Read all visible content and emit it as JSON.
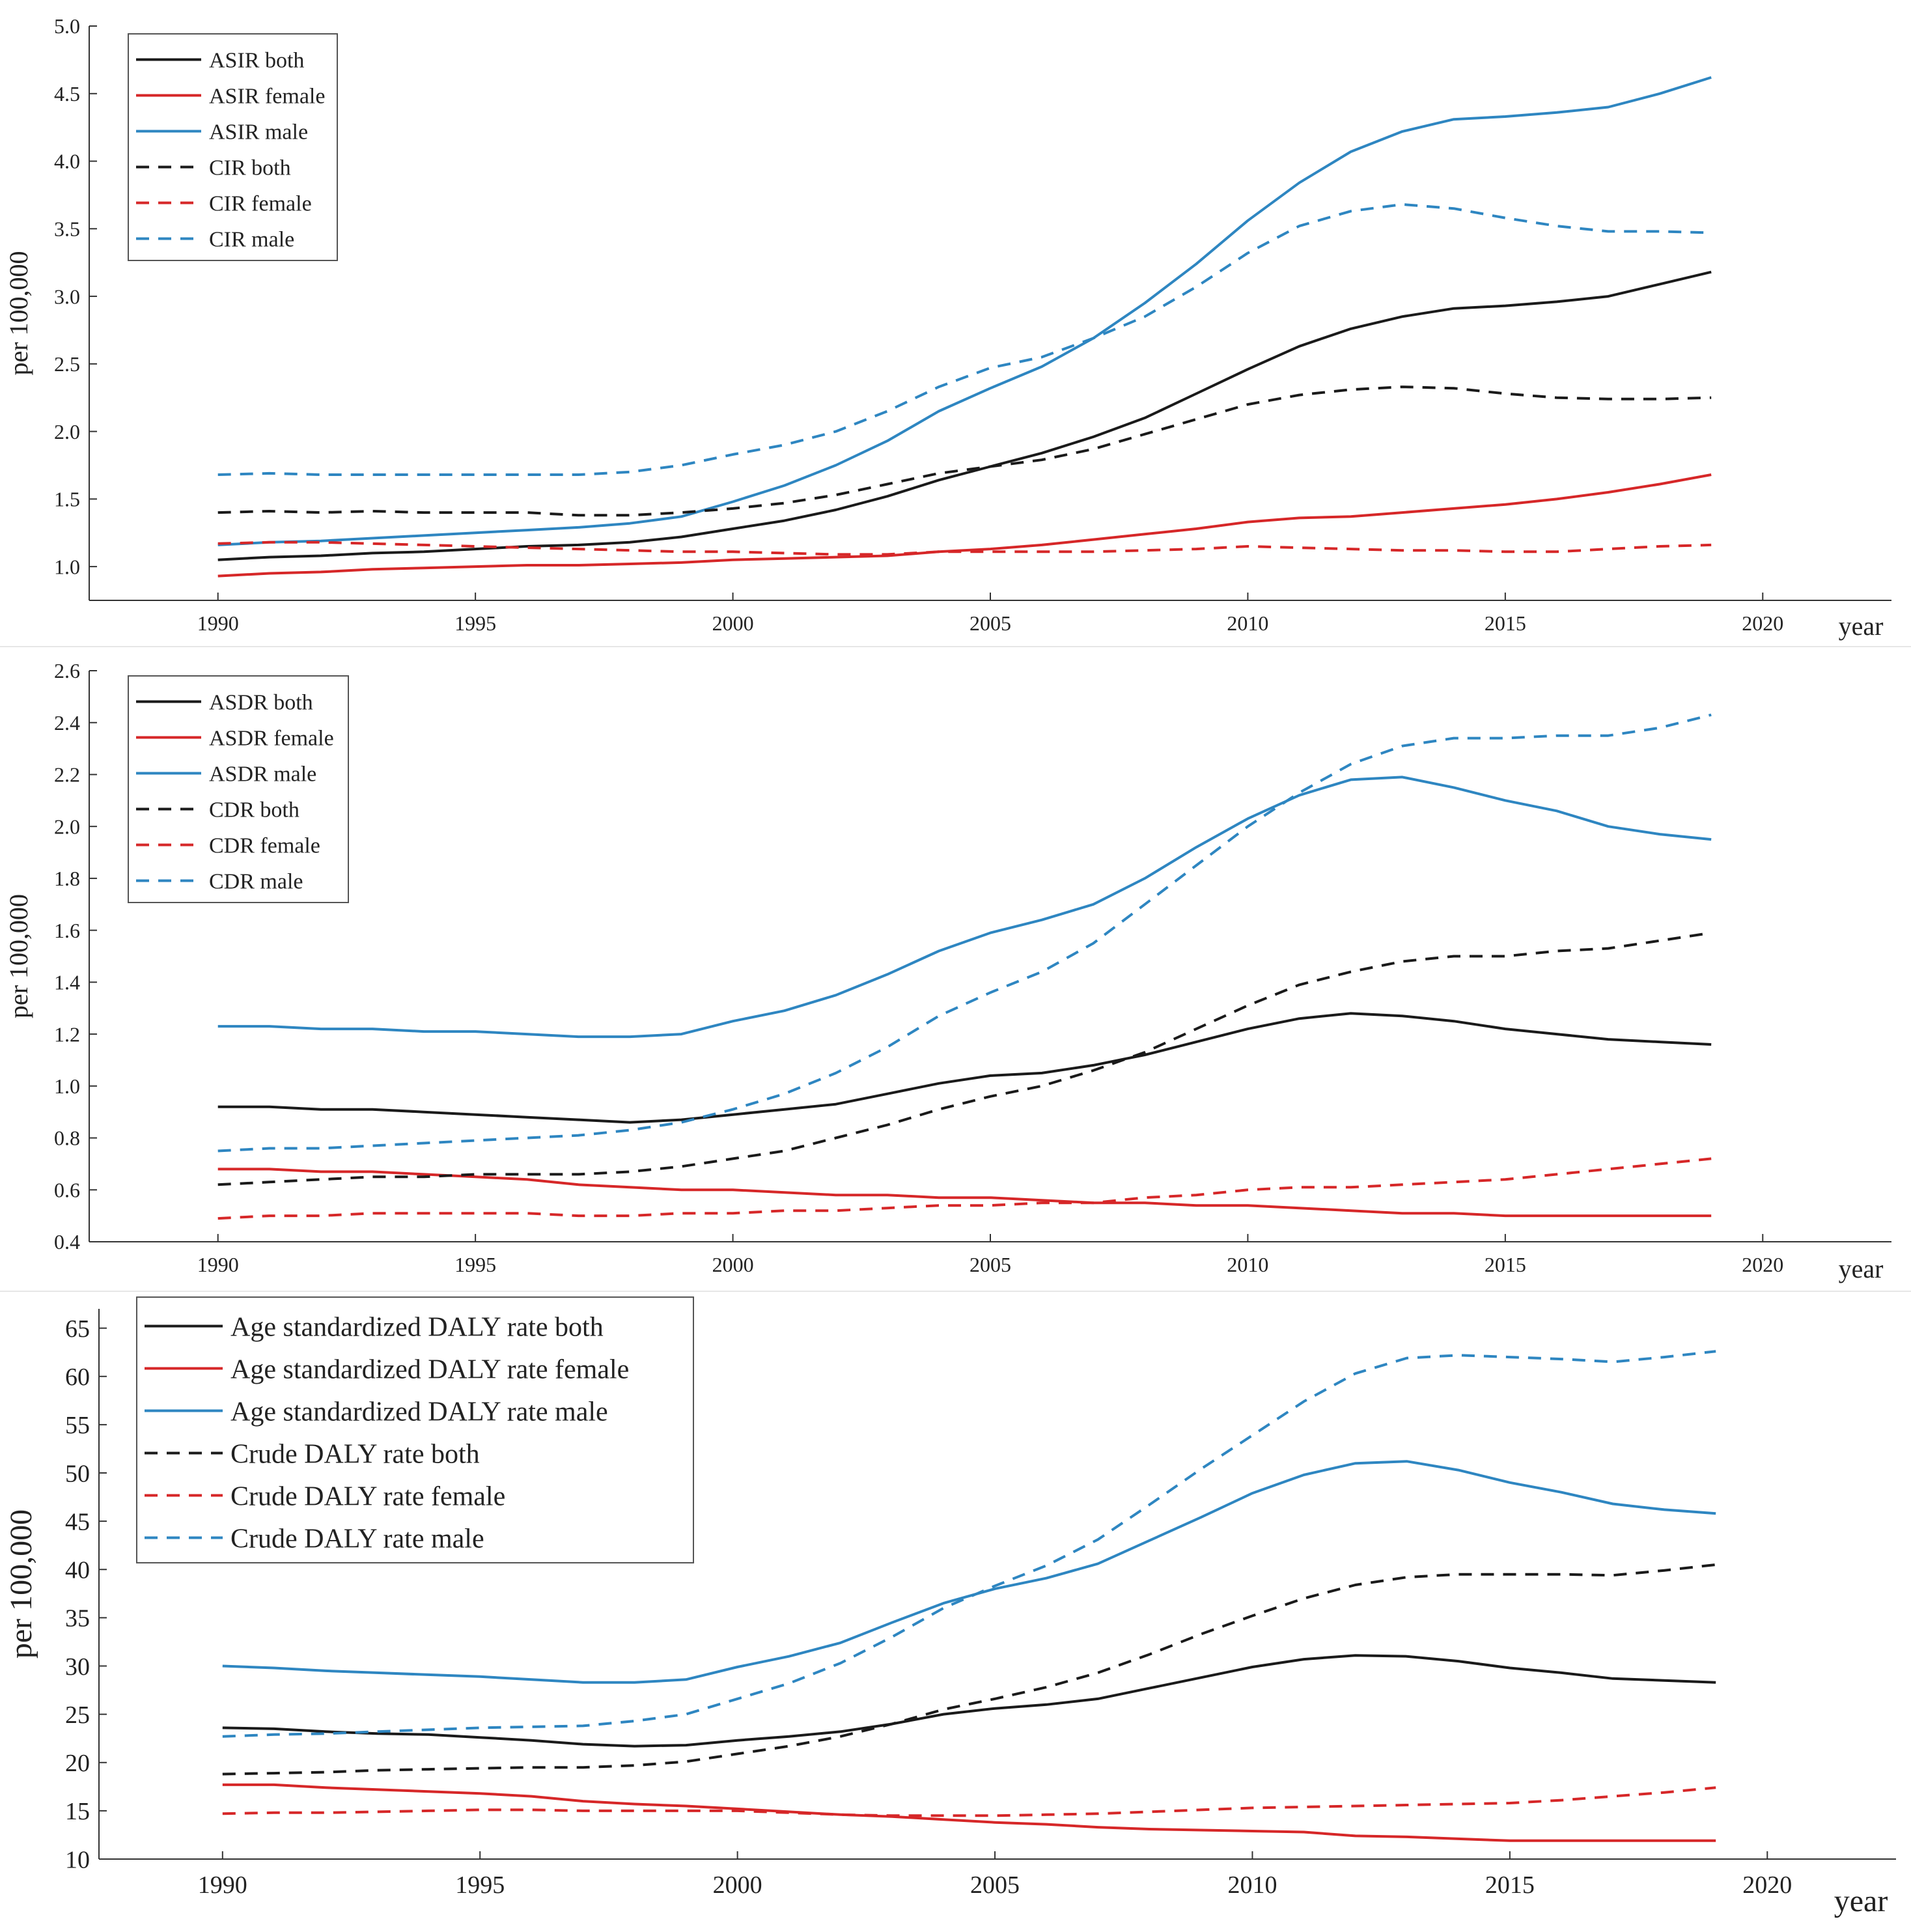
{
  "chart_data": [
    {
      "type": "line",
      "title": "",
      "xlabel": "year",
      "ylabel": "per 100,000",
      "xlim": [
        1987.5,
        2022.5
      ],
      "ylim": [
        0.75,
        5.0
      ],
      "xticks": [
        "1990",
        "1995",
        "2000",
        "2005",
        "2010",
        "2015",
        "2020"
      ],
      "yticks": [
        "1.0",
        "1.5",
        "2.0",
        "2.5",
        "3.0",
        "3.5",
        "4.0",
        "4.5",
        "5.0"
      ],
      "legend_position": "top-left",
      "grid": false,
      "x": [
        1990,
        1991,
        1992,
        1993,
        1994,
        1995,
        1996,
        1997,
        1998,
        1999,
        2000,
        2001,
        2002,
        2003,
        2004,
        2005,
        2006,
        2007,
        2008,
        2009,
        2010,
        2011,
        2012,
        2013,
        2014,
        2015,
        2016,
        2017,
        2018,
        2019
      ],
      "series": [
        {
          "name": "ASIR both",
          "style": "solid",
          "color": "#1a1a1a",
          "values": [
            1.05,
            1.07,
            1.08,
            1.1,
            1.11,
            1.13,
            1.15,
            1.16,
            1.18,
            1.22,
            1.28,
            1.34,
            1.42,
            1.52,
            1.64,
            1.74,
            1.84,
            1.96,
            2.1,
            2.28,
            2.46,
            2.63,
            2.76,
            2.85,
            2.91,
            2.93,
            2.96,
            3.0,
            3.09,
            3.18
          ]
        },
        {
          "name": "ASIR female",
          "style": "solid",
          "color": "#d62728",
          "values": [
            0.93,
            0.95,
            0.96,
            0.98,
            0.99,
            1.0,
            1.01,
            1.01,
            1.02,
            1.03,
            1.05,
            1.06,
            1.07,
            1.08,
            1.11,
            1.13,
            1.16,
            1.2,
            1.24,
            1.28,
            1.33,
            1.36,
            1.37,
            1.4,
            1.43,
            1.46,
            1.5,
            1.55,
            1.61,
            1.68
          ]
        },
        {
          "name": "ASIR male",
          "style": "solid",
          "color": "#2e86c1",
          "values": [
            1.16,
            1.18,
            1.19,
            1.21,
            1.23,
            1.25,
            1.27,
            1.29,
            1.32,
            1.37,
            1.48,
            1.6,
            1.75,
            1.93,
            2.15,
            2.32,
            2.48,
            2.69,
            2.95,
            3.24,
            3.56,
            3.84,
            4.07,
            4.22,
            4.31,
            4.33,
            4.36,
            4.4,
            4.5,
            4.62
          ]
        },
        {
          "name": "CIR both",
          "style": "dashed",
          "color": "#1a1a1a",
          "values": [
            1.4,
            1.41,
            1.4,
            1.41,
            1.4,
            1.4,
            1.4,
            1.38,
            1.38,
            1.4,
            1.43,
            1.47,
            1.53,
            1.61,
            1.69,
            1.74,
            1.79,
            1.87,
            1.98,
            2.09,
            2.2,
            2.27,
            2.31,
            2.33,
            2.32,
            2.28,
            2.25,
            2.24,
            2.24,
            2.25
          ]
        },
        {
          "name": "CIR female",
          "style": "dashed",
          "color": "#d62728",
          "values": [
            1.17,
            1.18,
            1.18,
            1.17,
            1.16,
            1.15,
            1.14,
            1.13,
            1.12,
            1.11,
            1.11,
            1.1,
            1.09,
            1.09,
            1.11,
            1.11,
            1.11,
            1.11,
            1.12,
            1.13,
            1.15,
            1.14,
            1.13,
            1.12,
            1.12,
            1.11,
            1.11,
            1.13,
            1.15,
            1.16
          ]
        },
        {
          "name": "CIR male",
          "style": "dashed",
          "color": "#2e86c1",
          "values": [
            1.68,
            1.69,
            1.68,
            1.68,
            1.68,
            1.68,
            1.68,
            1.68,
            1.7,
            1.75,
            1.83,
            1.9,
            2.0,
            2.15,
            2.33,
            2.47,
            2.55,
            2.69,
            2.85,
            3.07,
            3.32,
            3.52,
            3.63,
            3.68,
            3.65,
            3.58,
            3.52,
            3.48,
            3.48,
            3.47
          ]
        }
      ]
    },
    {
      "type": "line",
      "title": "",
      "xlabel": "year",
      "ylabel": "per 100,000",
      "xlim": [
        1987.5,
        2022.5
      ],
      "ylim": [
        0.4,
        2.6
      ],
      "xticks": [
        "1990",
        "1995",
        "2000",
        "2005",
        "2010",
        "2015",
        "2020"
      ],
      "yticks": [
        "0.4",
        "0.6",
        "0.8",
        "1.0",
        "1.2",
        "1.4",
        "1.6",
        "1.8",
        "2.0",
        "2.2",
        "2.4",
        "2.6"
      ],
      "legend_position": "top-left",
      "grid": false,
      "x": [
        1990,
        1991,
        1992,
        1993,
        1994,
        1995,
        1996,
        1997,
        1998,
        1999,
        2000,
        2001,
        2002,
        2003,
        2004,
        2005,
        2006,
        2007,
        2008,
        2009,
        2010,
        2011,
        2012,
        2013,
        2014,
        2015,
        2016,
        2017,
        2018,
        2019
      ],
      "series": [
        {
          "name": "ASDR both",
          "style": "solid",
          "color": "#1a1a1a",
          "values": [
            0.92,
            0.92,
            0.91,
            0.91,
            0.9,
            0.89,
            0.88,
            0.87,
            0.86,
            0.87,
            0.89,
            0.91,
            0.93,
            0.97,
            1.01,
            1.04,
            1.05,
            1.08,
            1.12,
            1.17,
            1.22,
            1.26,
            1.28,
            1.27,
            1.25,
            1.22,
            1.2,
            1.18,
            1.17,
            1.16
          ]
        },
        {
          "name": "ASDR female",
          "style": "solid",
          "color": "#d62728",
          "values": [
            0.68,
            0.68,
            0.67,
            0.67,
            0.66,
            0.65,
            0.64,
            0.62,
            0.61,
            0.6,
            0.6,
            0.59,
            0.58,
            0.58,
            0.57,
            0.57,
            0.56,
            0.55,
            0.55,
            0.54,
            0.54,
            0.53,
            0.52,
            0.51,
            0.51,
            0.5,
            0.5,
            0.5,
            0.5,
            0.5
          ]
        },
        {
          "name": "ASDR male",
          "style": "solid",
          "color": "#2e86c1",
          "values": [
            1.23,
            1.23,
            1.22,
            1.22,
            1.21,
            1.21,
            1.2,
            1.19,
            1.19,
            1.2,
            1.25,
            1.29,
            1.35,
            1.43,
            1.52,
            1.59,
            1.64,
            1.7,
            1.8,
            1.92,
            2.03,
            2.12,
            2.18,
            2.19,
            2.15,
            2.1,
            2.06,
            2.0,
            1.97,
            1.95
          ]
        },
        {
          "name": "CDR both",
          "style": "dashed",
          "color": "#1a1a1a",
          "values": [
            0.62,
            0.63,
            0.64,
            0.65,
            0.65,
            0.66,
            0.66,
            0.66,
            0.67,
            0.69,
            0.72,
            0.75,
            0.8,
            0.85,
            0.91,
            0.96,
            1.0,
            1.06,
            1.13,
            1.22,
            1.31,
            1.39,
            1.44,
            1.48,
            1.5,
            1.5,
            1.52,
            1.53,
            1.56,
            1.59
          ]
        },
        {
          "name": "CDR female",
          "style": "dashed",
          "color": "#d62728",
          "values": [
            0.49,
            0.5,
            0.5,
            0.51,
            0.51,
            0.51,
            0.51,
            0.5,
            0.5,
            0.51,
            0.51,
            0.52,
            0.52,
            0.53,
            0.54,
            0.54,
            0.55,
            0.55,
            0.57,
            0.58,
            0.6,
            0.61,
            0.61,
            0.62,
            0.63,
            0.64,
            0.66,
            0.68,
            0.7,
            0.72
          ]
        },
        {
          "name": "CDR male",
          "style": "dashed",
          "color": "#2e86c1",
          "values": [
            0.75,
            0.76,
            0.76,
            0.77,
            0.78,
            0.79,
            0.8,
            0.81,
            0.83,
            0.86,
            0.91,
            0.97,
            1.05,
            1.15,
            1.27,
            1.36,
            1.44,
            1.55,
            1.7,
            1.85,
            2.0,
            2.13,
            2.24,
            2.31,
            2.34,
            2.34,
            2.35,
            2.35,
            2.38,
            2.43
          ]
        }
      ]
    },
    {
      "type": "line",
      "title": "",
      "xlabel": "year",
      "ylabel": "per 100,000",
      "xlim": [
        1987.6,
        2022.5
      ],
      "ylim": [
        10,
        67
      ],
      "xticks": [
        "1990",
        "1995",
        "2000",
        "2005",
        "2010",
        "2015",
        "2020"
      ],
      "yticks": [
        "10",
        "15",
        "20",
        "25",
        "30",
        "35",
        "40",
        "45",
        "50",
        "55",
        "60",
        "65"
      ],
      "legend_position": "top-left",
      "grid": false,
      "x": [
        1990,
        1991,
        1992,
        1993,
        1994,
        1995,
        1996,
        1997,
        1998,
        1999,
        2000,
        2001,
        2002,
        2003,
        2004,
        2005,
        2006,
        2007,
        2008,
        2009,
        2010,
        2011,
        2012,
        2013,
        2014,
        2015,
        2016,
        2017,
        2018,
        2019
      ],
      "series": [
        {
          "name": "Age standardized DALY rate both",
          "style": "solid",
          "color": "#1a1a1a",
          "values": [
            23.6,
            23.5,
            23.2,
            23.0,
            22.9,
            22.6,
            22.3,
            21.9,
            21.7,
            21.8,
            22.3,
            22.7,
            23.2,
            24.0,
            25.0,
            25.6,
            26.0,
            26.6,
            27.7,
            28.8,
            29.9,
            30.7,
            31.1,
            31.0,
            30.5,
            29.8,
            29.3,
            28.7,
            28.5,
            28.3
          ]
        },
        {
          "name": "Age standardized DALY rate female",
          "style": "solid",
          "color": "#d62728",
          "values": [
            17.7,
            17.7,
            17.4,
            17.2,
            17.0,
            16.8,
            16.5,
            16.0,
            15.7,
            15.5,
            15.2,
            14.9,
            14.6,
            14.4,
            14.1,
            13.8,
            13.6,
            13.3,
            13.1,
            13.0,
            12.9,
            12.8,
            12.4,
            12.3,
            12.1,
            11.9,
            11.9,
            11.9,
            11.9,
            11.9
          ]
        },
        {
          "name": "Age standardized DALY rate male",
          "style": "solid",
          "color": "#2e86c1",
          "values": [
            30.0,
            29.8,
            29.5,
            29.3,
            29.1,
            28.9,
            28.6,
            28.3,
            28.3,
            28.6,
            29.9,
            31.0,
            32.4,
            34.5,
            36.5,
            38.0,
            39.1,
            40.6,
            43.0,
            45.4,
            47.9,
            49.8,
            51.0,
            51.2,
            50.3,
            49.0,
            48.0,
            46.8,
            46.2,
            45.8
          ]
        },
        {
          "name": "Crude DALY rate both",
          "style": "dashed",
          "color": "#1a1a1a",
          "values": [
            18.8,
            18.9,
            19.0,
            19.2,
            19.3,
            19.4,
            19.5,
            19.5,
            19.7,
            20.1,
            20.9,
            21.7,
            22.7,
            24.0,
            25.5,
            26.6,
            27.8,
            29.3,
            31.2,
            33.3,
            35.2,
            37.0,
            38.4,
            39.2,
            39.5,
            39.5,
            39.5,
            39.4,
            39.9,
            40.5
          ]
        },
        {
          "name": "Crude DALY rate female",
          "style": "dashed",
          "color": "#d62728",
          "values": [
            14.7,
            14.8,
            14.8,
            14.9,
            15.0,
            15.1,
            15.1,
            15.0,
            15.0,
            15.0,
            15.0,
            14.8,
            14.6,
            14.5,
            14.5,
            14.5,
            14.6,
            14.7,
            14.9,
            15.1,
            15.3,
            15.4,
            15.5,
            15.6,
            15.7,
            15.8,
            16.1,
            16.5,
            16.9,
            17.4
          ]
        },
        {
          "name": "Crude DALY rate male",
          "style": "dashed",
          "color": "#2e86c1",
          "values": [
            22.7,
            22.9,
            23.0,
            23.2,
            23.4,
            23.6,
            23.7,
            23.8,
            24.3,
            25.0,
            26.6,
            28.2,
            30.3,
            33.0,
            36.0,
            38.3,
            40.4,
            43.1,
            46.7,
            50.4,
            53.9,
            57.4,
            60.3,
            61.9,
            62.2,
            62.0,
            61.8,
            61.5,
            62.0,
            62.6
          ]
        }
      ]
    }
  ]
}
